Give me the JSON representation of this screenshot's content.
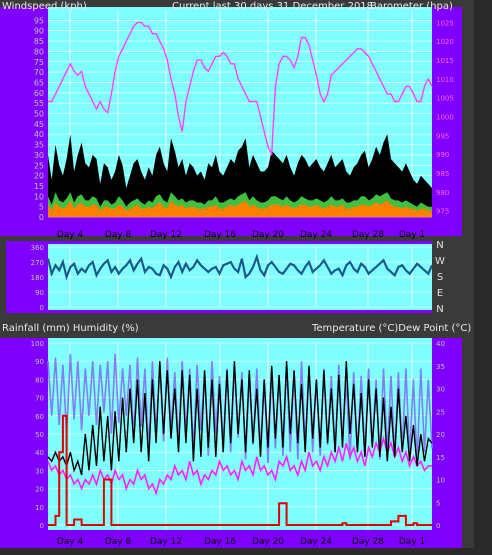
{
  "colors": {
    "frame_bg": "#3a3a3a",
    "left_panel": "#8000ff",
    "plot_bg": "#80ffff",
    "barometer": "#ff40ff",
    "windspeed": "#000000",
    "wind_avg": "#ff8000",
    "wind_mid": "#40c040",
    "wind_dir": "#1a5a8a",
    "rain": "#e00000",
    "humidity": "#8080f0",
    "temperature": "#000000",
    "dewpoint": "#ff20ff",
    "grid": "#ffffff"
  },
  "header": {
    "left_title": "Windspeed (kph)",
    "center_title": "Current last 30 days 31 December 2018",
    "right_title": "Barometer (hpa)"
  },
  "direction_labels": [
    "N",
    "W",
    "S",
    "E",
    "N"
  ],
  "lower_header": {
    "left_title": "Rainfall (mm)  Humidity (%)",
    "right_title": "Temperature (°C)Dew Point (°C)"
  },
  "chart_data": [
    {
      "type": "line",
      "name": "wind-barometer",
      "x_tick_labels": [
        "Day 4",
        "Day 8",
        "Day 12",
        "Day 16",
        "Day 20",
        "Day 24",
        "Day 28",
        "Day 1"
      ],
      "y_left_ticks": [
        "0",
        "5",
        "10",
        "15",
        "20",
        "25",
        "30",
        "35",
        "40",
        "45",
        "50",
        "55",
        "60",
        "65",
        "70",
        "75",
        "80",
        "85",
        "90",
        "95"
      ],
      "y_left_tick_values": [
        0,
        5,
        10,
        15,
        20,
        25,
        30,
        35,
        40,
        45,
        50,
        55,
        60,
        65,
        70,
        75,
        80,
        85,
        90,
        95
      ],
      "y_left_range": [
        0,
        100
      ],
      "y_right_ticks": [
        "975",
        "980",
        "985",
        "990",
        "995",
        "1000",
        "1005",
        "1010",
        "1015",
        "1020",
        "1025"
      ],
      "y_right_tick_values": [
        975,
        980,
        985,
        990,
        995,
        1000,
        1005,
        1010,
        1015,
        1020,
        1025
      ],
      "y_right_range": [
        973.3,
        1028.3
      ],
      "series": [
        {
          "key": "barometer",
          "axis": "right",
          "values": [
            1004,
            1004,
            1006,
            1008,
            1010,
            1012,
            1014,
            1012,
            1011,
            1012,
            1008,
            1006,
            1004,
            1002,
            1004,
            1002,
            1001,
            1006,
            1012,
            1016,
            1018,
            1020,
            1022,
            1024,
            1025,
            1025,
            1024,
            1024,
            1022,
            1022,
            1020,
            1018,
            1015,
            1010,
            1006,
            1000,
            996,
            1004,
            1008,
            1012,
            1015,
            1015,
            1013,
            1012,
            1014,
            1016,
            1016,
            1017,
            1016,
            1014,
            1014,
            1010,
            1008,
            1006,
            1004,
            1004,
            1004,
            1000,
            996,
            992,
            990,
            1008,
            1014,
            1016,
            1016,
            1015,
            1013,
            1016,
            1021,
            1021,
            1019,
            1015,
            1011,
            1006,
            1004,
            1006,
            1011,
            1012,
            1013,
            1014,
            1015,
            1016,
            1017,
            1018,
            1018,
            1017,
            1016,
            1014,
            1012,
            1010,
            1008,
            1006,
            1006,
            1004,
            1004,
            1006,
            1008,
            1008,
            1006,
            1004,
            1004,
            1008,
            1010,
            1008
          ]
        },
        {
          "key": "windspeed",
          "axis": "left",
          "style": "fill",
          "values": [
            30,
            18,
            35,
            25,
            20,
            28,
            40,
            22,
            30,
            36,
            26,
            24,
            30,
            28,
            16,
            26,
            24,
            18,
            22,
            30,
            25,
            14,
            20,
            26,
            28,
            22,
            18,
            24,
            20,
            30,
            34,
            26,
            22,
            38,
            32,
            24,
            28,
            20,
            26,
            24,
            20,
            22,
            18,
            26,
            24,
            30,
            22,
            20,
            24,
            28,
            26,
            32,
            34,
            38,
            24,
            30,
            26,
            22,
            22,
            24,
            32,
            30,
            28,
            26,
            30,
            24,
            20,
            26,
            30,
            28,
            24,
            26,
            28,
            24,
            22,
            26,
            30,
            24,
            26,
            28,
            22,
            20,
            24,
            26,
            30,
            32,
            24,
            28,
            34,
            30,
            36,
            40,
            28,
            26,
            24,
            22,
            26,
            22,
            18,
            16,
            20,
            18,
            16,
            14
          ]
        },
        {
          "key": "wind_mid",
          "axis": "left",
          "style": "fill",
          "values": [
            10,
            6,
            12,
            8,
            7,
            9,
            12,
            7,
            10,
            11,
            8,
            8,
            10,
            9,
            5,
            8,
            8,
            6,
            7,
            10,
            8,
            5,
            7,
            8,
            9,
            7,
            6,
            8,
            7,
            10,
            11,
            8,
            7,
            12,
            10,
            8,
            9,
            7,
            8,
            8,
            7,
            7,
            6,
            8,
            8,
            10,
            7,
            7,
            8,
            9,
            8,
            10,
            11,
            12,
            8,
            10,
            8,
            7,
            7,
            8,
            10,
            10,
            9,
            8,
            10,
            8,
            7,
            8,
            10,
            9,
            8,
            8,
            9,
            8,
            7,
            8,
            10,
            8,
            8,
            9,
            7,
            7,
            8,
            8,
            10,
            10,
            8,
            9,
            11,
            10,
            11,
            12,
            9,
            8,
            8,
            7,
            8,
            7,
            6,
            5,
            7,
            6,
            5,
            5
          ]
        },
        {
          "key": "wind_avg",
          "axis": "left",
          "style": "fill",
          "values": [
            6,
            3,
            7,
            5,
            4,
            5,
            8,
            4,
            6,
            7,
            5,
            5,
            6,
            6,
            3,
            5,
            5,
            4,
            4,
            6,
            5,
            3,
            4,
            5,
            6,
            4,
            4,
            5,
            4,
            6,
            7,
            5,
            4,
            8,
            6,
            5,
            6,
            4,
            5,
            5,
            4,
            4,
            4,
            5,
            5,
            6,
            4,
            4,
            5,
            6,
            5,
            6,
            7,
            8,
            5,
            6,
            5,
            4,
            4,
            5,
            6,
            6,
            6,
            5,
            6,
            5,
            4,
            5,
            6,
            6,
            5,
            5,
            6,
            5,
            4,
            5,
            6,
            5,
            5,
            6,
            4,
            4,
            5,
            5,
            6,
            6,
            5,
            6,
            7,
            6,
            7,
            8,
            6,
            5,
            5,
            4,
            5,
            4,
            4,
            3,
            4,
            4,
            3,
            3
          ]
        }
      ]
    },
    {
      "type": "scatter",
      "name": "wind-direction",
      "y_left_ticks": [
        "360",
        "270",
        "180",
        "90",
        "0"
      ],
      "y_left_tick_values": [
        360,
        270,
        180,
        90,
        0
      ],
      "y_range": [
        0,
        360
      ],
      "series": [
        {
          "key": "wind_dir",
          "values": [
            290,
            200,
            250,
            220,
            270,
            180,
            240,
            260,
            200,
            230,
            210,
            250,
            270,
            190,
            230,
            260,
            280,
            210,
            240,
            200,
            230,
            250,
            280,
            220,
            260,
            290,
            210,
            240,
            230,
            200,
            190,
            250,
            230,
            180,
            240,
            270,
            210,
            260,
            220,
            240,
            280,
            250,
            230,
            210,
            230,
            240,
            200,
            250,
            260,
            270,
            230,
            210,
            290,
            180,
            200,
            240,
            300,
            220,
            190,
            250,
            270,
            240,
            210,
            200,
            230,
            260,
            250,
            220,
            200,
            240,
            270,
            210,
            230,
            250,
            280,
            240,
            200,
            220,
            230,
            190,
            250,
            270,
            230,
            210,
            260,
            240,
            200,
            220,
            240,
            260,
            280,
            230,
            210,
            190,
            240,
            250,
            220,
            200,
            230,
            260,
            240,
            220,
            200,
            250
          ]
        }
      ]
    },
    {
      "type": "line",
      "name": "rain-humidity-temp-dew",
      "x_tick_labels": [
        "Day 4",
        "Day 8",
        "Day 12",
        "Day 16",
        "Day 20",
        "Day 24",
        "Day 28",
        "Day 1"
      ],
      "y_left_ticks": [
        "0",
        "10",
        "20",
        "30",
        "40",
        "50",
        "60",
        "70",
        "80",
        "90",
        "100"
      ],
      "y_left_tick_values": [
        0,
        10,
        20,
        30,
        40,
        50,
        60,
        70,
        80,
        90,
        100
      ],
      "y_left_range": [
        0,
        100
      ],
      "y_right_ticks": [
        "0",
        "5",
        "10",
        "15",
        "20",
        "25",
        "30",
        "35",
        "40"
      ],
      "y_right_tick_values": [
        0,
        5,
        10,
        15,
        20,
        25,
        30,
        35,
        40
      ],
      "y_right_range": [
        0,
        40
      ],
      "series": [
        {
          "key": "humidity",
          "axis": "left",
          "values": [
            90,
            60,
            92,
            55,
            88,
            50,
            94,
            58,
            90,
            52,
            86,
            60,
            90,
            55,
            88,
            62,
            90,
            50,
            94,
            56,
            86,
            60,
            88,
            48,
            92,
            54,
            86,
            40,
            90,
            50,
            88,
            46,
            92,
            52,
            84,
            44,
            90,
            50,
            86,
            40,
            88,
            52,
            84,
            38,
            90,
            50,
            82,
            44,
            86,
            40,
            88,
            48,
            84,
            36,
            82,
            44,
            86,
            40,
            80,
            34,
            86,
            42,
            82,
            38,
            88,
            40,
            84,
            36,
            90,
            44,
            86,
            40,
            80,
            38,
            86,
            44,
            82,
            40,
            88,
            46,
            80,
            36,
            84,
            40,
            82,
            38,
            86,
            44,
            80,
            36,
            86,
            40,
            82,
            38,
            84,
            40,
            86,
            38,
            80,
            34,
            86,
            40,
            80,
            42
          ]
        },
        {
          "key": "temperature",
          "axis": "right",
          "values": [
            15,
            14,
            16,
            14,
            15,
            13,
            16,
            12,
            14,
            11,
            20,
            12,
            22,
            13,
            26,
            14,
            24,
            12,
            25,
            14,
            28,
            16,
            30,
            18,
            32,
            16,
            29,
            14,
            32,
            18,
            36,
            20,
            34,
            19,
            30,
            16,
            34,
            18,
            33,
            14,
            30,
            15,
            34,
            17,
            32,
            15,
            31,
            16,
            34,
            18,
            36,
            20,
            32,
            16,
            34,
            18,
            30,
            15,
            32,
            17,
            35,
            19,
            33,
            17,
            36,
            20,
            34,
            18,
            31,
            16,
            35,
            19,
            32,
            17,
            34,
            18,
            30,
            16,
            33,
            17,
            36,
            20,
            31,
            16,
            29,
            15,
            32,
            17,
            30,
            15,
            28,
            14,
            26,
            15,
            30,
            16,
            24,
            14,
            22,
            13,
            20,
            14,
            19,
            18
          ]
        },
        {
          "key": "dewpoint",
          "axis": "right",
          "values": [
            14,
            12,
            13,
            11,
            12,
            10,
            11,
            9,
            10,
            8,
            10,
            9,
            11,
            9,
            12,
            10,
            11,
            9,
            12,
            10,
            11,
            8,
            10,
            9,
            12,
            10,
            11,
            8,
            9,
            7,
            10,
            9,
            11,
            10,
            13,
            11,
            12,
            10,
            14,
            11,
            12,
            9,
            11,
            10,
            12,
            11,
            14,
            12,
            13,
            11,
            12,
            10,
            14,
            12,
            13,
            11,
            15,
            12,
            13,
            11,
            12,
            10,
            14,
            13,
            15,
            12,
            13,
            11,
            14,
            12,
            16,
            13,
            14,
            12,
            15,
            13,
            16,
            14,
            17,
            14,
            18,
            15,
            17,
            14,
            16,
            13,
            17,
            15,
            18,
            16,
            19,
            16,
            18,
            15,
            17,
            14,
            16,
            13,
            15,
            13,
            14,
            12,
            13,
            13
          ]
        },
        {
          "key": "rain",
          "axis": "left",
          "style": "step",
          "values": [
            0,
            0,
            5,
            40,
            60,
            0,
            0,
            3,
            3,
            0,
            0,
            0,
            0,
            0,
            0,
            25,
            25,
            0,
            0,
            0,
            0,
            0,
            0,
            0,
            0,
            0,
            0,
            0,
            0,
            0,
            0,
            0,
            0,
            0,
            0,
            0,
            0,
            0,
            0,
            0,
            0,
            0,
            0,
            0,
            0,
            0,
            0,
            0,
            0,
            0,
            0,
            0,
            0,
            0,
            0,
            0,
            0,
            0,
            0,
            0,
            0,
            0,
            12,
            12,
            0,
            0,
            0,
            0,
            0,
            0,
            0,
            0,
            0,
            0,
            0,
            0,
            0,
            0,
            0,
            1,
            0,
            0,
            0,
            0,
            0,
            0,
            0,
            0,
            0,
            0,
            0,
            0,
            2,
            2,
            5,
            5,
            0,
            0,
            1,
            0,
            0,
            0,
            0,
            0
          ]
        }
      ]
    }
  ]
}
